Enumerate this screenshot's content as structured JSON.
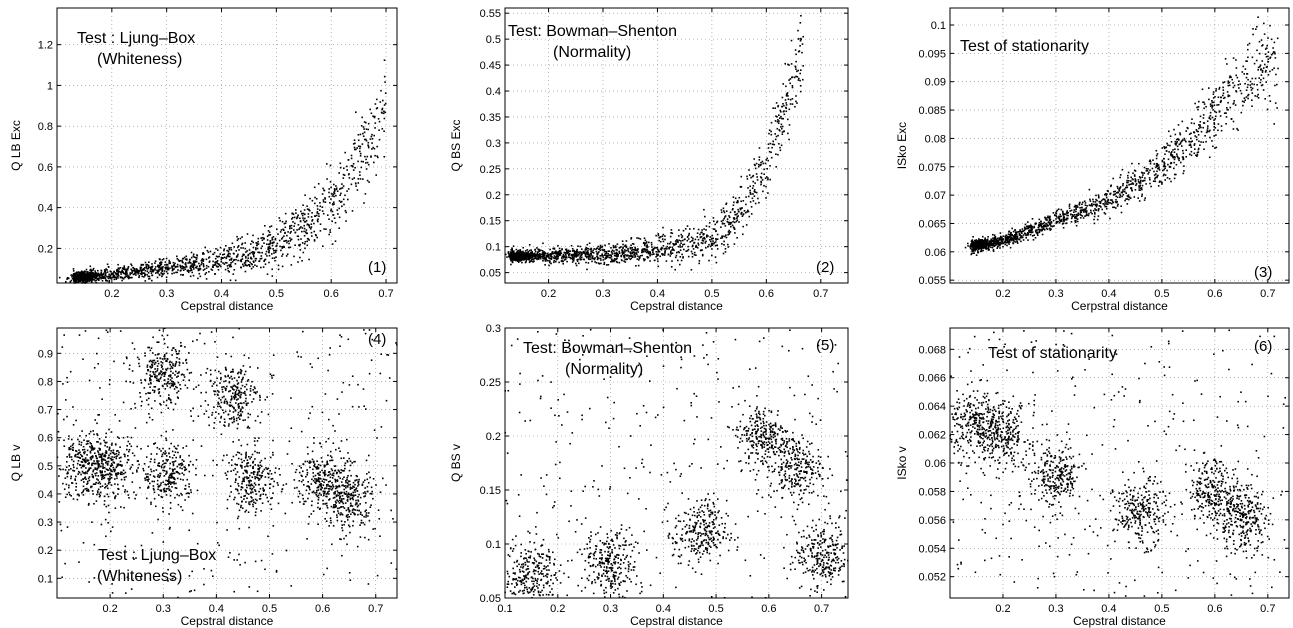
{
  "chart_data": [
    {
      "type": "scatter",
      "panel_label": "(1)",
      "annotation": [
        "Test : Ljung–Box",
        "(Whiteness)"
      ],
      "xlabel": "Cepstral distance",
      "ylabel": "Q LB Exc",
      "xlim": [
        0.1,
        0.72
      ],
      "ylim": [
        0.03,
        1.38
      ],
      "xticks": [
        0.2,
        0.3,
        0.4,
        0.5,
        0.6,
        0.7
      ],
      "yticks": [
        0.2,
        0.4,
        0.6,
        0.8,
        1.0,
        1.2
      ],
      "ytick_labels": [
        "0.2",
        "0.4",
        "0.6",
        "0.8",
        "1",
        "1.2"
      ],
      "grid": true,
      "trend": [
        [
          0.13,
          0.055
        ],
        [
          0.2,
          0.07
        ],
        [
          0.3,
          0.1
        ],
        [
          0.4,
          0.14
        ],
        [
          0.45,
          0.17
        ],
        [
          0.5,
          0.22
        ],
        [
          0.55,
          0.3
        ],
        [
          0.6,
          0.42
        ],
        [
          0.65,
          0.62
        ],
        [
          0.7,
          0.9
        ]
      ]
    },
    {
      "type": "scatter",
      "panel_label": "(2)",
      "annotation": [
        "Test: Bowman–Shenton",
        "(Normality)"
      ],
      "xlabel": "Cepstral distance",
      "ylabel": "Q BS Exc",
      "xlim": [
        0.12,
        0.75
      ],
      "ylim": [
        0.03,
        0.56
      ],
      "xticks": [
        0.2,
        0.3,
        0.4,
        0.5,
        0.6,
        0.7
      ],
      "yticks": [
        0.05,
        0.1,
        0.15,
        0.2,
        0.25,
        0.3,
        0.35,
        0.4,
        0.45,
        0.5,
        0.55
      ],
      "ytick_labels": [
        "0.05",
        "0.1",
        "0.15",
        "0.2",
        "0.25",
        "0.3",
        "0.35",
        "0.4",
        "0.45",
        "0.5",
        "0.55"
      ],
      "grid": true,
      "trend": [
        [
          0.13,
          0.082
        ],
        [
          0.3,
          0.084
        ],
        [
          0.4,
          0.095
        ],
        [
          0.47,
          0.105
        ],
        [
          0.52,
          0.13
        ],
        [
          0.56,
          0.18
        ],
        [
          0.6,
          0.26
        ],
        [
          0.64,
          0.38
        ],
        [
          0.67,
          0.48
        ]
      ]
    },
    {
      "type": "scatter",
      "panel_label": "(3)",
      "annotation": [
        "Test of stationarity"
      ],
      "xlabel": "Cerpstral distance",
      "ylabel": "ISko Exc",
      "xlim": [
        0.1,
        0.74
      ],
      "ylim": [
        0.0545,
        0.103
      ],
      "xticks": [
        0.2,
        0.3,
        0.4,
        0.5,
        0.6,
        0.7
      ],
      "yticks": [
        0.055,
        0.06,
        0.065,
        0.07,
        0.075,
        0.08,
        0.085,
        0.09,
        0.095,
        0.1
      ],
      "ytick_labels": [
        "0.055",
        "0.06",
        "0.065",
        "0.07",
        "0.075",
        "0.08",
        "0.085",
        "0.09",
        "0.095",
        "0.1"
      ],
      "grid": true,
      "trend": [
        [
          0.14,
          0.061
        ],
        [
          0.2,
          0.062
        ],
        [
          0.3,
          0.0655
        ],
        [
          0.4,
          0.069
        ],
        [
          0.47,
          0.073
        ],
        [
          0.55,
          0.079
        ],
        [
          0.6,
          0.084
        ],
        [
          0.65,
          0.09
        ],
        [
          0.72,
          0.093
        ]
      ]
    },
    {
      "type": "scatter",
      "panel_label": "(4)",
      "annotation": [
        "Test : Ljung–Box",
        "(Whiteness)"
      ],
      "xlabel": "Cepstral distance",
      "ylabel": "Q LB v",
      "xlim": [
        0.1,
        0.74
      ],
      "ylim": [
        0.03,
        0.99
      ],
      "xticks": [
        0.2,
        0.3,
        0.4,
        0.5,
        0.6,
        0.7
      ],
      "yticks": [
        0.1,
        0.2,
        0.3,
        0.4,
        0.5,
        0.6,
        0.7,
        0.8,
        0.9
      ],
      "ytick_labels": [
        "0.1",
        "0.2",
        "0.3",
        "0.4",
        "0.5",
        "0.6",
        "0.7",
        "0.8",
        "0.9"
      ],
      "grid": true,
      "clusters": [
        [
          0.15,
          0.5
        ],
        [
          0.2,
          0.5
        ],
        [
          0.31,
          0.47
        ],
        [
          0.3,
          0.82
        ],
        [
          0.47,
          0.45
        ],
        [
          0.43,
          0.75
        ],
        [
          0.6,
          0.45
        ],
        [
          0.65,
          0.38
        ]
      ]
    },
    {
      "type": "scatter",
      "panel_label": "(5)",
      "annotation": [
        "Test: Bowman–Shenton",
        "(Normality)"
      ],
      "xlabel": "Cepstral distance",
      "ylabel": "Q BS v",
      "xlim": [
        0.1,
        0.75
      ],
      "ylim": [
        0.05,
        0.3
      ],
      "xticks": [
        0.1,
        0.2,
        0.3,
        0.4,
        0.5,
        0.6,
        0.7
      ],
      "yticks": [
        0.05,
        0.1,
        0.15,
        0.2,
        0.25,
        0.3
      ],
      "ytick_labels": [
        "0.05",
        "0.1",
        "0.15",
        "0.2",
        "0.25",
        "0.3"
      ],
      "grid": true,
      "clusters": [
        [
          0.15,
          0.073
        ],
        [
          0.3,
          0.082
        ],
        [
          0.47,
          0.11
        ],
        [
          0.59,
          0.2
        ],
        [
          0.65,
          0.17
        ],
        [
          0.7,
          0.09
        ]
      ]
    },
    {
      "type": "scatter",
      "panel_label": "(6)",
      "annotation": [
        "Test of stationarity"
      ],
      "xlabel": "Cepstral distance",
      "ylabel": "ISko v",
      "xlim": [
        0.1,
        0.74
      ],
      "ylim": [
        0.0505,
        0.0695
      ],
      "xticks": [
        0.2,
        0.3,
        0.4,
        0.5,
        0.6,
        0.7
      ],
      "yticks": [
        0.052,
        0.054,
        0.056,
        0.058,
        0.06,
        0.062,
        0.064,
        0.066,
        0.068
      ],
      "ytick_labels": [
        "0.052",
        "0.054",
        "0.056",
        "0.058",
        "0.06",
        "0.062",
        "0.064",
        "0.066",
        "0.068"
      ],
      "grid": true,
      "clusters": [
        [
          0.15,
          0.0627
        ],
        [
          0.2,
          0.062
        ],
        [
          0.3,
          0.059
        ],
        [
          0.46,
          0.0565
        ],
        [
          0.6,
          0.058
        ],
        [
          0.65,
          0.056
        ]
      ]
    }
  ]
}
